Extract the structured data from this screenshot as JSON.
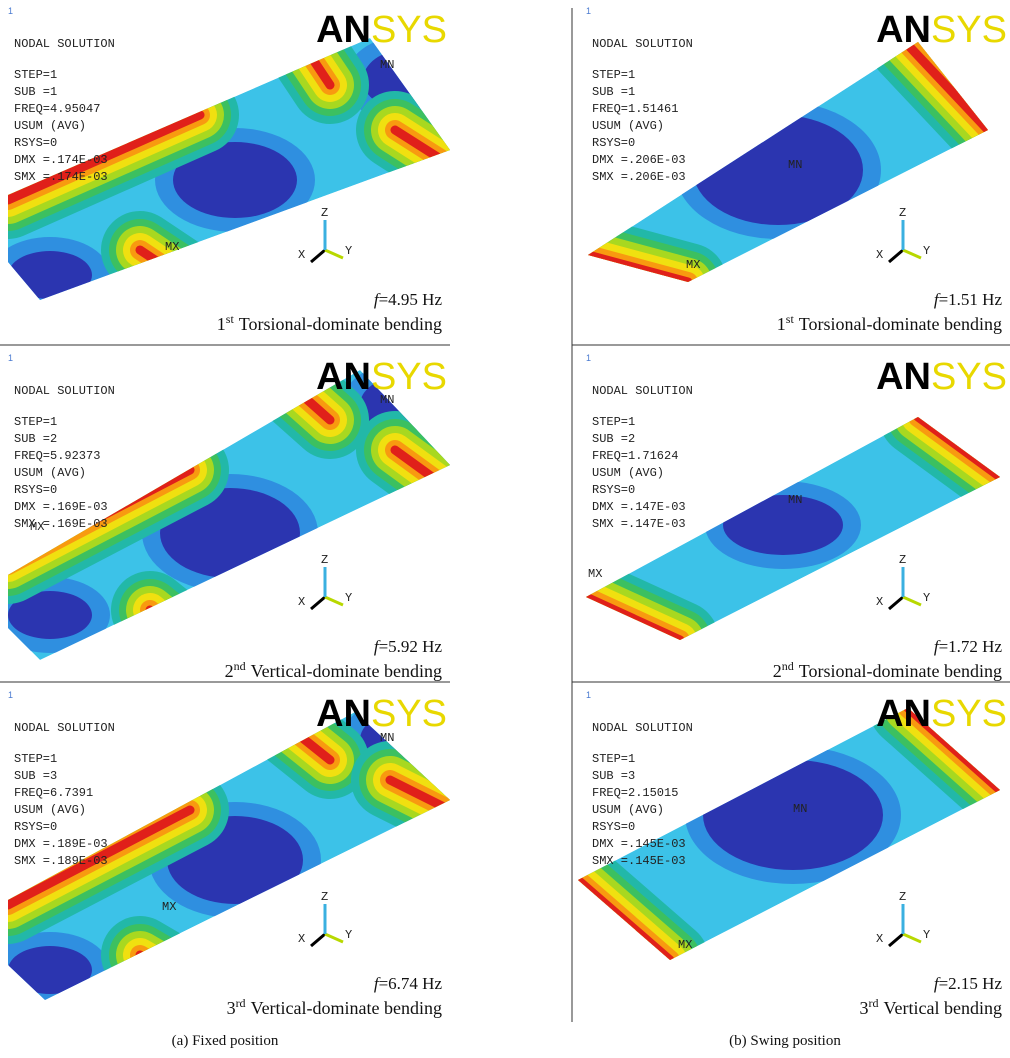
{
  "header": "NODAL SOLUTION",
  "window_number": "1",
  "logo": {
    "black": "AN",
    "yellow": "SYS"
  },
  "triad": [
    "X",
    "Y",
    "Z"
  ],
  "columns": [
    {
      "caption": "(a) Fixed position",
      "panels": [
        {
          "lines": [
            "STEP=1",
            "SUB =1",
            "FREQ=4.95047",
            "USUM      (AVG)",
            "RSYS=0",
            "DMX =.174E-03",
            "SMX =.174E-03"
          ],
          "min_label": "MN",
          "max_label": "MX",
          "freq": {
            "symbol": "f",
            "text": "=4.95 Hz"
          },
          "mode": {
            "ordinal": "1",
            "suffix": "st",
            "name": "Torsional-dominate bending"
          }
        },
        {
          "lines": [
            "STEP=1",
            "SUB =2",
            "FREQ=5.92373",
            "USUM      (AVG)",
            "RSYS=0",
            "DMX =.169E-03",
            "SMX =.169E-03"
          ],
          "min_label": "MN",
          "max_label": "MX",
          "freq": {
            "symbol": "f",
            "text": "=5.92 Hz"
          },
          "mode": {
            "ordinal": "2",
            "suffix": "nd",
            "name": "Vertical-dominate bending"
          }
        },
        {
          "lines": [
            "STEP=1",
            "SUB =3",
            "FREQ=6.7391",
            "USUM      (AVG)",
            "RSYS=0",
            "DMX =.189E-03",
            "SMX =.189E-03"
          ],
          "min_label": "MN",
          "max_label": "MX",
          "freq": {
            "symbol": "f",
            "text": "=6.74 Hz"
          },
          "mode": {
            "ordinal": "3",
            "suffix": "rd",
            "name": "Vertical-dominate bending"
          }
        }
      ]
    },
    {
      "caption": "(b) Swing position",
      "panels": [
        {
          "lines": [
            "STEP=1",
            "SUB =1",
            "FREQ=1.51461",
            "USUM      (AVG)",
            "RSYS=0",
            "DMX =.206E-03",
            "SMX =.206E-03"
          ],
          "min_label": "MN",
          "max_label": "MX",
          "freq": {
            "symbol": "f",
            "text": "=1.51 Hz"
          },
          "mode": {
            "ordinal": "1",
            "suffix": "st",
            "name": "Torsional-dominate bending"
          }
        },
        {
          "lines": [
            "STEP=1",
            "SUB =2",
            "FREQ=1.71624",
            "USUM      (AVG)",
            "RSYS=0",
            "DMX =.147E-03",
            "SMX =.147E-03"
          ],
          "min_label": "MN",
          "max_label": "MX",
          "freq": {
            "symbol": "f",
            "text": "=1.72 Hz"
          },
          "mode": {
            "ordinal": "2",
            "suffix": "nd",
            "name": "Torsional-dominate bending"
          }
        },
        {
          "lines": [
            "STEP=1",
            "SUB =3",
            "FREQ=2.15015",
            "USUM      (AVG)",
            "RSYS=0",
            "DMX =.145E-03",
            "SMX =.145E-03"
          ],
          "min_label": "MN",
          "max_label": "MX",
          "freq": {
            "symbol": "f",
            "text": "=2.15 Hz"
          },
          "mode": {
            "ordinal": "3",
            "suffix": "rd",
            "name": "Vertical bending"
          }
        }
      ]
    }
  ]
}
